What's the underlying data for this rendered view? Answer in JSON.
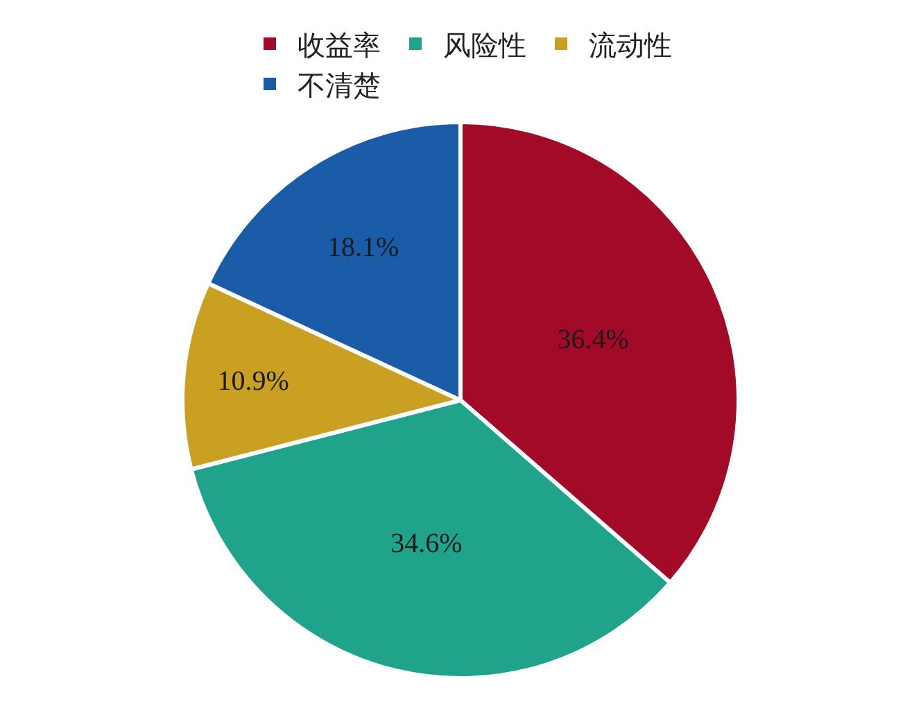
{
  "chart_data": {
    "type": "pie",
    "categories": [
      "收益率",
      "风险性",
      "流动性",
      "不清楚"
    ],
    "values": [
      36.4,
      34.6,
      10.9,
      18.1
    ],
    "colors": [
      "#a20a28",
      "#1fa38b",
      "#c9a021",
      "#1a5ca8"
    ],
    "value_labels": [
      "36.4%",
      "34.6%",
      "10.9%",
      "18.1%"
    ],
    "legend": "top"
  }
}
